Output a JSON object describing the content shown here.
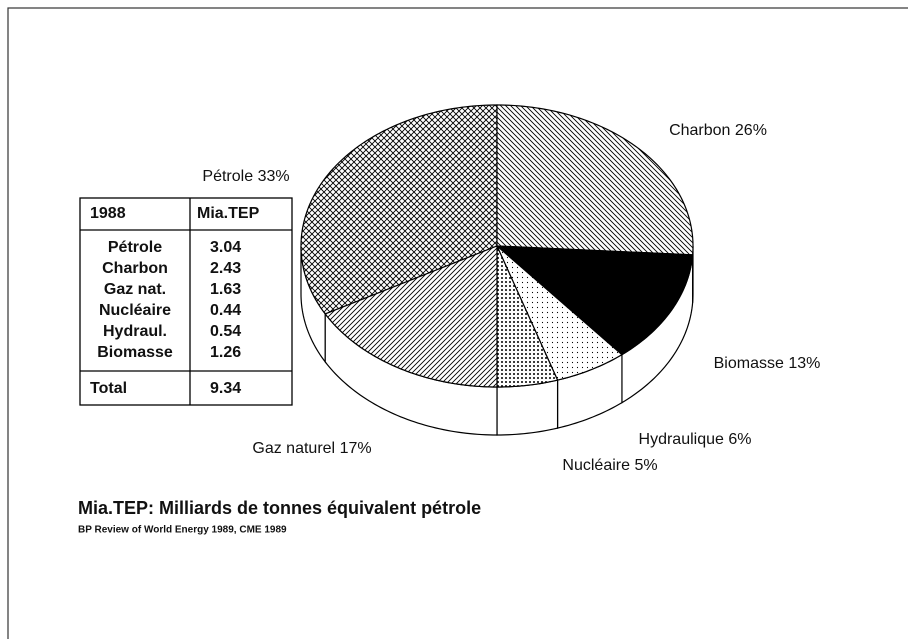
{
  "chart_data": {
    "type": "pie",
    "categories": [
      "Pétrole",
      "Charbon",
      "Biomasse",
      "Hydraulique",
      "Nucléaire",
      "Gaz naturel"
    ],
    "values": [
      33,
      26,
      13,
      6,
      5,
      17
    ],
    "value_labels": [
      "33%",
      "26%",
      "13%",
      "6%",
      "5%",
      "17%"
    ],
    "table": {
      "header": [
        "1988",
        "Mia.TEP"
      ],
      "rows": [
        [
          "Pétrole",
          3.04
        ],
        [
          "Charbon",
          2.43
        ],
        [
          "Gaz nat.",
          1.63
        ],
        [
          "Nucléaire",
          0.44
        ],
        [
          "Hydraul.",
          0.54
        ],
        [
          "Biomasse",
          1.26
        ]
      ],
      "total": [
        "Total",
        9.34
      ]
    },
    "footnote": "Mia.TEP: Milliards de tonnes équivalent pétrole",
    "source": "BP Review of World Energy 1989, CME 1989"
  }
}
